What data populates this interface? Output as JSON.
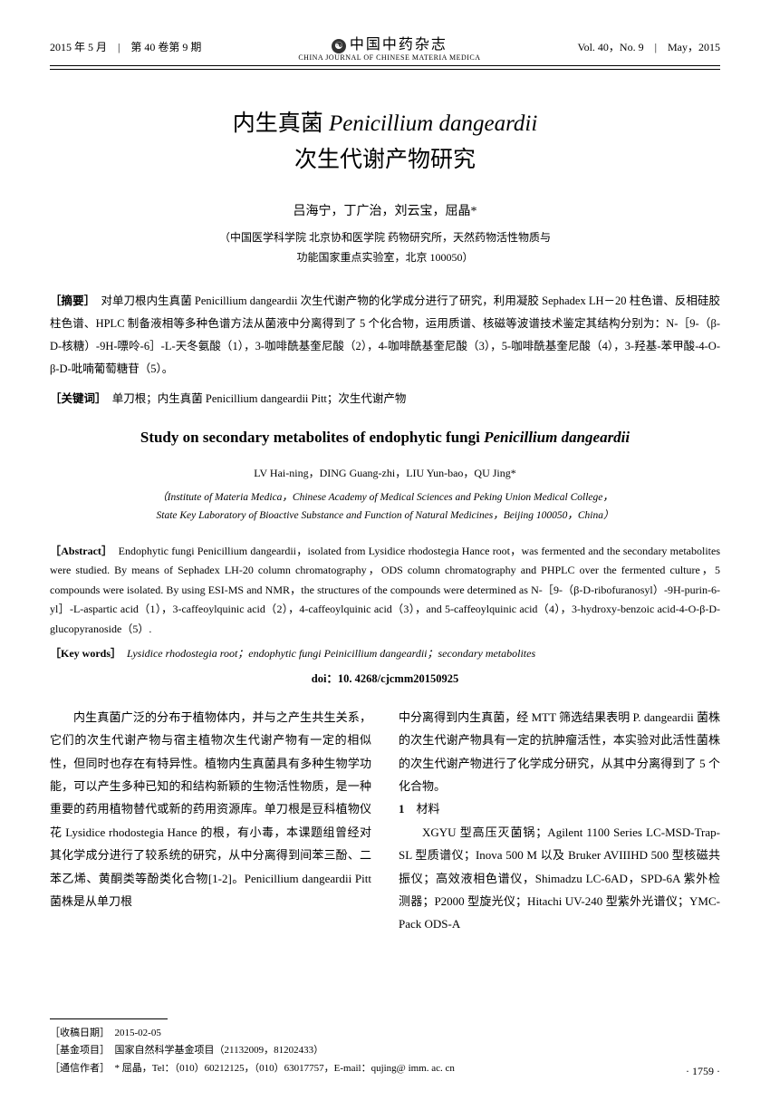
{
  "header": {
    "left": "2015 年 5 月　|　第 40 卷第 9 期",
    "journal_cn": "中国中药杂志",
    "journal_en": "CHINA JOURNAL OF CHINESE MATERIA MEDICA",
    "right": "Vol. 40，No. 9　|　May，2015"
  },
  "title_cn_1": "内生真菌 ",
  "title_cn_latin": "Penicillium dangeardii",
  "title_cn_2": "次生代谢产物研究",
  "authors_cn": "吕海宁，丁广治，刘云宝，屈晶*",
  "affil_cn_1": "（中国医学科学院 北京协和医学院 药物研究所，天然药物活性物质与",
  "affil_cn_2": "功能国家重点实验室，北京 100050）",
  "abstract_cn_label": "［摘要］",
  "abstract_cn": "　对单刀根内生真菌 Penicillium dangeardii 次生代谢产物的化学成分进行了研究，利用凝胶 Sephadex LH－20 柱色谱、反相硅胶柱色谱、HPLC 制备液相等多种色谱方法从菌液中分离得到了 5 个化合物，运用质谱、核磁等波谱技术鉴定其结构分别为：N-［9-（β-D-核糖）-9H-嘌呤-6］-L-天冬氨酸（1），3-咖啡酰基奎尼酸（2），4-咖啡酰基奎尼酸（3），5-咖啡酰基奎尼酸（4），3-羟基-苯甲酸-4-O-β-D-吡喃葡萄糖苷（5）。",
  "keywords_cn_label": "［关键词］",
  "keywords_cn": "　单刀根；内生真菌 Penicillium dangeardii Pitt；次生代谢产物",
  "title_en_pre": "Study on secondary metabolites of endophytic fungi ",
  "title_en_latin": "Penicillium dangeardii",
  "authors_en": "LV Hai-ning，DING Guang-zhi，LIU Yun-bao，QU Jing*",
  "affil_en_1": "（Institute of Materia Medica，Chinese Academy of Medical Sciences and Peking Union Medical College，",
  "affil_en_2": "State Key Laboratory of Bioactive Substance and Function of Natural Medicines，Beijing 100050，China）",
  "abstract_en_label": "［Abstract］",
  "abstract_en": "　Endophytic fungi Penicillium dangeardii，isolated from Lysidice rhodostegia Hance root，was fermented and the secondary metabolites were studied. By means of Sephadex LH-20 column chromatography，ODS column chromatography and PHPLC over the fermented culture，5 compounds were isolated. By using ESI-MS and NMR，the structures of the compounds were determined as N-［9-（β-D-ribofuranosyl）-9H-purin-6-yl］-L-aspartic acid（1），3-caffeoylquinic acid（2），4-caffeoylquinic acid（3），and 5-caffeoylquinic acid（4），3-hydroxy-benzoic acid-4-O-β-D-glucopyranoside（5）.",
  "keywords_en_label": "［Key words］",
  "keywords_en": "　Lysidice rhodostegia root；endophytic fungi Peinicillium dangeardii；secondary metabolites",
  "doi": "doi：10. 4268/cjcmm20150925",
  "body_col1": "内生真菌广泛的分布于植物体内，并与之产生共生关系，它们的次生代谢产物与宿主植物次生代谢产物有一定的相似性，但同时也存在有特异性。植物内生真菌具有多种生物学功能，可以产生多种已知的和结构新颖的生物活性物质，是一种重要的药用植物替代或新的药用资源库。单刀根是豆科植物仪花 Lysidice rhodostegia Hance 的根，有小毒，本课题组曾经对其化学成分进行了较系统的研究，从中分离得到间苯三酚、二苯乙烯、黄酮类等酚类化合物[1-2]。Penicillium dangeardii Pitt 菌株是从单刀根",
  "body_col2_p1": "中分离得到内生真菌，经 MTT 筛选结果表明 P. dangeardii 菌株的次生代谢产物具有一定的抗肿瘤活性，本实验对此活性菌株的次生代谢产物进行了化学成分研究，从其中分离得到了 5 个化合物。",
  "body_sec1_num": "1",
  "body_sec1_title": "　材料",
  "body_col2_p2": "XGYU 型高压灭菌锅；Agilent 1100 Series LC-MSD-Trap-SL 型质谱仪；Inova 500 M 以及 Bruker AVIIIHD 500 型核磁共振仪；高效液相色谱仪，Shimadzu LC-6AD，SPD-6A 紫外检测器；P2000 型旋光仪；Hitachi UV-240 型紫外光谱仪；YMC-Pack ODS-A",
  "footer": {
    "received_label": "［收稿日期］",
    "received": "　2015-02-05",
    "fund_label": "［基金项目］",
    "fund": "　国家自然科学基金项目（21132009，81202433）",
    "corr_label": "［通信作者］",
    "corr": "　* 屈晶，Tel：（010）60212125，（010）63017757，E-mail：qujing@ imm. ac. cn"
  },
  "page_num": "· 1759 ·"
}
